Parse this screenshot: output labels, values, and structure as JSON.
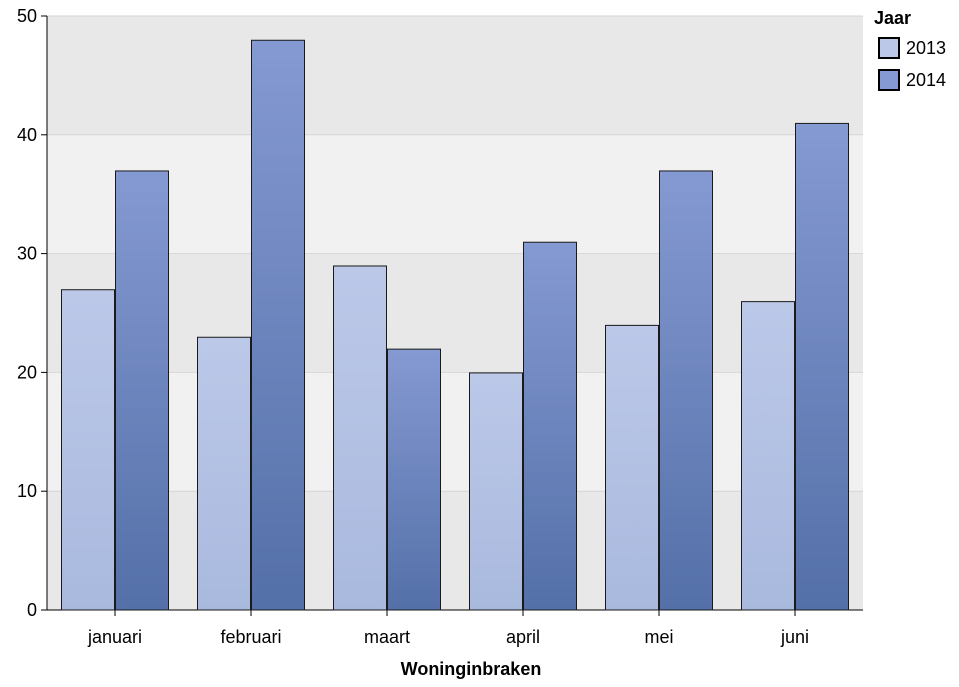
{
  "chart_data": {
    "type": "bar",
    "xlabel": "Woninginbraken",
    "ylabel": "",
    "categories": [
      "januari",
      "februari",
      "maart",
      "april",
      "mei",
      "juni"
    ],
    "ylim": [
      0,
      50
    ],
    "yticks": [
      0,
      10,
      20,
      30,
      40,
      50
    ],
    "grid": true,
    "legend": {
      "title": "Jaar",
      "placement": "top-right"
    },
    "series": [
      {
        "name": "2013",
        "values": [
          27,
          23,
          29,
          20,
          24,
          26
        ],
        "color_top": "#bcc8e8",
        "color_bottom": "#a9b9de"
      },
      {
        "name": "2014",
        "values": [
          37,
          48,
          22,
          31,
          37,
          41
        ],
        "color_top": "#8599d2",
        "color_bottom": "#5470a8"
      }
    ],
    "band_colors": [
      "#e8e8e8",
      "#f1f1f1"
    ]
  }
}
